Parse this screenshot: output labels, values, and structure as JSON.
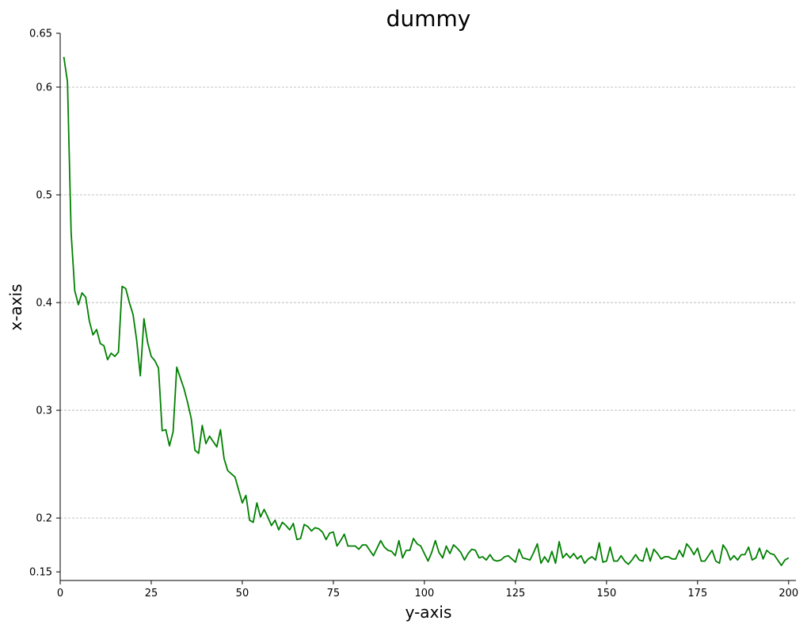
{
  "chart_data": {
    "type": "line",
    "title": "dummy",
    "xlabel": "y-axis",
    "ylabel": "x-axis",
    "xlim": [
      0,
      202
    ],
    "ylim": [
      0.142,
      0.65
    ],
    "x_ticks": [
      0,
      25,
      50,
      75,
      100,
      125,
      150,
      175,
      200
    ],
    "x_tick_labels": [
      "0",
      "25",
      "50",
      "75",
      "100",
      "125",
      "150",
      "175",
      "200"
    ],
    "y_ticks": [
      0.15,
      0.2,
      0.3,
      0.4,
      0.5,
      0.6,
      0.65
    ],
    "y_tick_labels": [
      "0.15",
      "0.2",
      "0.3",
      "0.4",
      "0.5",
      "0.6",
      "0.65"
    ],
    "y_grid_values": [
      0.2,
      0.3,
      0.4,
      0.5,
      0.6
    ],
    "grid": true,
    "line_color": "#008000",
    "series": [
      {
        "values": [
          [
            1,
            0.628
          ],
          [
            2,
            0.605
          ],
          [
            3,
            0.465
          ],
          [
            4,
            0.411
          ],
          [
            5,
            0.398
          ],
          [
            6,
            0.409
          ],
          [
            7,
            0.405
          ],
          [
            8,
            0.383
          ],
          [
            9,
            0.37
          ],
          [
            10,
            0.375
          ],
          [
            11,
            0.362
          ],
          [
            12,
            0.36
          ],
          [
            13,
            0.347
          ],
          [
            14,
            0.353
          ],
          [
            15,
            0.35
          ],
          [
            16,
            0.354
          ],
          [
            17,
            0.415
          ],
          [
            18,
            0.413
          ],
          [
            19,
            0.4
          ],
          [
            20,
            0.389
          ],
          [
            21,
            0.365
          ],
          [
            22,
            0.332
          ],
          [
            23,
            0.385
          ],
          [
            24,
            0.363
          ],
          [
            25,
            0.35
          ],
          [
            26,
            0.346
          ],
          [
            27,
            0.339
          ],
          [
            28,
            0.281
          ],
          [
            29,
            0.282
          ],
          [
            30,
            0.267
          ],
          [
            31,
            0.28
          ],
          [
            32,
            0.34
          ],
          [
            33,
            0.33
          ],
          [
            34,
            0.32
          ],
          [
            35,
            0.307
          ],
          [
            36,
            0.292
          ],
          [
            37,
            0.263
          ],
          [
            38,
            0.26
          ],
          [
            39,
            0.286
          ],
          [
            40,
            0.269
          ],
          [
            41,
            0.276
          ],
          [
            42,
            0.271
          ],
          [
            43,
            0.266
          ],
          [
            44,
            0.282
          ],
          [
            45,
            0.255
          ],
          [
            46,
            0.244
          ],
          [
            47,
            0.241
          ],
          [
            48,
            0.238
          ],
          [
            49,
            0.226
          ],
          [
            50,
            0.214
          ],
          [
            51,
            0.221
          ],
          [
            52,
            0.198
          ],
          [
            53,
            0.196
          ],
          [
            54,
            0.214
          ],
          [
            55,
            0.201
          ],
          [
            56,
            0.208
          ],
          [
            57,
            0.201
          ],
          [
            58,
            0.193
          ],
          [
            59,
            0.198
          ],
          [
            60,
            0.189
          ],
          [
            61,
            0.196
          ],
          [
            62,
            0.193
          ],
          [
            63,
            0.189
          ],
          [
            64,
            0.195
          ],
          [
            65,
            0.18
          ],
          [
            66,
            0.181
          ],
          [
            67,
            0.194
          ],
          [
            68,
            0.192
          ],
          [
            69,
            0.188
          ],
          [
            70,
            0.191
          ],
          [
            71,
            0.19
          ],
          [
            72,
            0.187
          ],
          [
            73,
            0.18
          ],
          [
            74,
            0.186
          ],
          [
            75,
            0.187
          ],
          [
            76,
            0.174
          ],
          [
            77,
            0.179
          ],
          [
            78,
            0.185
          ],
          [
            79,
            0.174
          ],
          [
            80,
            0.174
          ],
          [
            81,
            0.174
          ],
          [
            82,
            0.171
          ],
          [
            83,
            0.175
          ],
          [
            84,
            0.175
          ],
          [
            85,
            0.17
          ],
          [
            86,
            0.165
          ],
          [
            87,
            0.172
          ],
          [
            88,
            0.179
          ],
          [
            89,
            0.173
          ],
          [
            90,
            0.17
          ],
          [
            91,
            0.169
          ],
          [
            92,
            0.165
          ],
          [
            93,
            0.179
          ],
          [
            94,
            0.163
          ],
          [
            95,
            0.17
          ],
          [
            96,
            0.17
          ],
          [
            97,
            0.181
          ],
          [
            98,
            0.176
          ],
          [
            99,
            0.174
          ],
          [
            100,
            0.167
          ],
          [
            101,
            0.16
          ],
          [
            102,
            0.168
          ],
          [
            103,
            0.179
          ],
          [
            104,
            0.168
          ],
          [
            105,
            0.163
          ],
          [
            106,
            0.174
          ],
          [
            107,
            0.167
          ],
          [
            108,
            0.175
          ],
          [
            109,
            0.172
          ],
          [
            110,
            0.168
          ],
          [
            111,
            0.161
          ],
          [
            112,
            0.167
          ],
          [
            113,
            0.171
          ],
          [
            114,
            0.17
          ],
          [
            115,
            0.163
          ],
          [
            116,
            0.164
          ],
          [
            117,
            0.161
          ],
          [
            118,
            0.166
          ],
          [
            119,
            0.161
          ],
          [
            120,
            0.16
          ],
          [
            121,
            0.161
          ],
          [
            122,
            0.164
          ],
          [
            123,
            0.165
          ],
          [
            124,
            0.162
          ],
          [
            125,
            0.159
          ],
          [
            126,
            0.171
          ],
          [
            127,
            0.163
          ],
          [
            128,
            0.162
          ],
          [
            129,
            0.161
          ],
          [
            130,
            0.168
          ],
          [
            131,
            0.176
          ],
          [
            132,
            0.158
          ],
          [
            133,
            0.164
          ],
          [
            134,
            0.159
          ],
          [
            135,
            0.169
          ],
          [
            136,
            0.158
          ],
          [
            137,
            0.178
          ],
          [
            138,
            0.163
          ],
          [
            139,
            0.167
          ],
          [
            140,
            0.163
          ],
          [
            141,
            0.167
          ],
          [
            142,
            0.162
          ],
          [
            143,
            0.165
          ],
          [
            144,
            0.158
          ],
          [
            145,
            0.162
          ],
          [
            146,
            0.164
          ],
          [
            147,
            0.161
          ],
          [
            148,
            0.177
          ],
          [
            149,
            0.159
          ],
          [
            150,
            0.16
          ],
          [
            151,
            0.173
          ],
          [
            152,
            0.16
          ],
          [
            153,
            0.16
          ],
          [
            154,
            0.165
          ],
          [
            155,
            0.16
          ],
          [
            156,
            0.157
          ],
          [
            157,
            0.161
          ],
          [
            158,
            0.166
          ],
          [
            159,
            0.161
          ],
          [
            160,
            0.16
          ],
          [
            161,
            0.172
          ],
          [
            162,
            0.16
          ],
          [
            163,
            0.171
          ],
          [
            164,
            0.167
          ],
          [
            165,
            0.162
          ],
          [
            166,
            0.164
          ],
          [
            167,
            0.164
          ],
          [
            168,
            0.162
          ],
          [
            169,
            0.162
          ],
          [
            170,
            0.17
          ],
          [
            171,
            0.164
          ],
          [
            172,
            0.176
          ],
          [
            173,
            0.172
          ],
          [
            174,
            0.166
          ],
          [
            175,
            0.172
          ],
          [
            176,
            0.16
          ],
          [
            177,
            0.16
          ],
          [
            178,
            0.165
          ],
          [
            179,
            0.17
          ],
          [
            180,
            0.16
          ],
          [
            181,
            0.158
          ],
          [
            182,
            0.175
          ],
          [
            183,
            0.17
          ],
          [
            184,
            0.161
          ],
          [
            185,
            0.165
          ],
          [
            186,
            0.161
          ],
          [
            187,
            0.166
          ],
          [
            188,
            0.166
          ],
          [
            189,
            0.173
          ],
          [
            190,
            0.161
          ],
          [
            191,
            0.163
          ],
          [
            192,
            0.172
          ],
          [
            193,
            0.162
          ],
          [
            194,
            0.17
          ],
          [
            195,
            0.167
          ],
          [
            196,
            0.166
          ],
          [
            197,
            0.161
          ],
          [
            198,
            0.156
          ],
          [
            199,
            0.161
          ],
          [
            200,
            0.163
          ]
        ]
      }
    ]
  }
}
